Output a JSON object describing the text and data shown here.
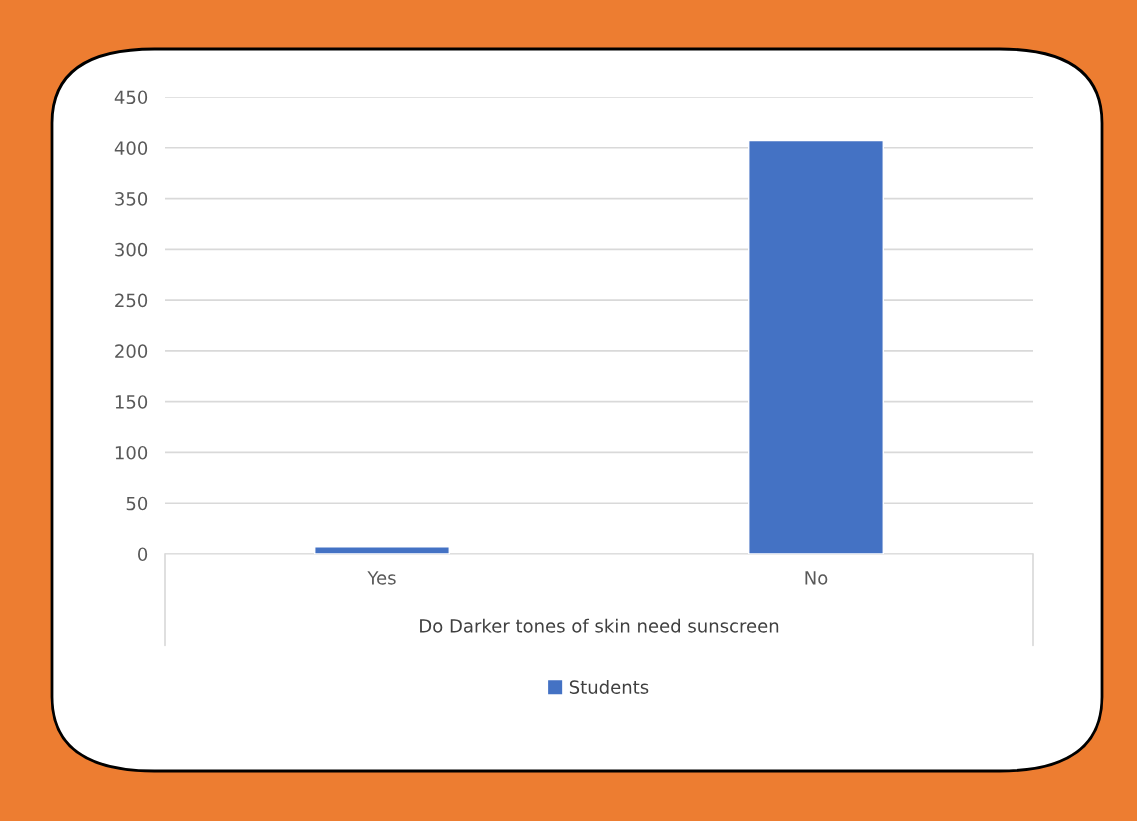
{
  "chart_data": {
    "type": "bar",
    "xlabel": "Do Darker tones of skin need sunscreen",
    "categories": [
      "Yes",
      "No"
    ],
    "series": [
      {
        "name": "Students",
        "color": "#4472c4",
        "values": [
          7,
          407
        ]
      }
    ],
    "ylim": [
      0,
      450
    ],
    "yticks": [
      0,
      50,
      100,
      150,
      200,
      250,
      300,
      350,
      400,
      450
    ],
    "grid": "y",
    "legend": "bottom"
  }
}
